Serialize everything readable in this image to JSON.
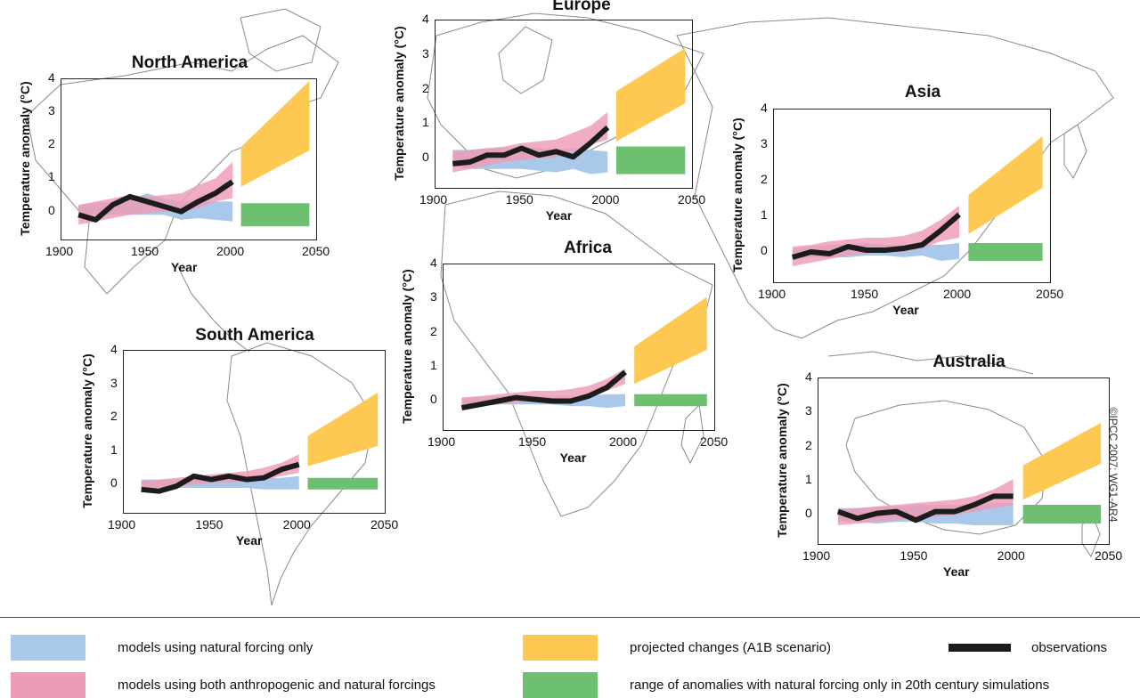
{
  "colors": {
    "natural": "#a9c8ea",
    "both": "#ee9bb6",
    "projected": "#fec953",
    "range20c": "#6cc070",
    "observations": "#1c1c1c",
    "map": "#777777"
  },
  "legend": {
    "natural": "models using natural forcing only",
    "both": "models using both anthropogenic and natural forcings",
    "projected": "projected changes (A1B scenario)",
    "observations": "observations",
    "range20c": "range of anomalies with natural forcing only in 20th century simulations"
  },
  "credit": "©IPCC 2007: WG1-AR4",
  "chart_data": [
    {
      "type": "area",
      "title": "North America",
      "xlabel": "Year",
      "ylabel": "Temperature anomaly (°C)",
      "xlim": [
        1900,
        2050
      ],
      "ylim": [
        -0.9,
        4
      ],
      "xticks": [
        "1900",
        "1950",
        "2000",
        "2050"
      ],
      "yticks": [
        "0",
        "1",
        "2",
        "3",
        "4"
      ],
      "series": [
        {
          "name": "models using natural forcing only",
          "x": [
            1910,
            1920,
            1930,
            1940,
            1950,
            1960,
            1970,
            1980,
            1990,
            2000
          ],
          "low": [
            -0.1,
            -0.1,
            -0.1,
            -0.1,
            -0.1,
            -0.1,
            -0.25,
            -0.2,
            -0.25,
            -0.3
          ],
          "high": [
            0.2,
            0.25,
            0.3,
            0.35,
            0.55,
            0.4,
            0.3,
            0.3,
            0.3,
            0.3
          ]
        },
        {
          "name": "models using both anthropogenic and natural forcings",
          "x": [
            1910,
            1920,
            1930,
            1940,
            1950,
            1960,
            1970,
            1980,
            1990,
            2000
          ],
          "low": [
            -0.4,
            -0.3,
            -0.2,
            -0.1,
            -0.05,
            0.0,
            0.0,
            0.1,
            0.3,
            0.4
          ],
          "high": [
            0.2,
            0.3,
            0.4,
            0.5,
            0.45,
            0.5,
            0.55,
            0.8,
            1.0,
            1.5
          ]
        },
        {
          "name": "observations",
          "x": [
            1910,
            1920,
            1930,
            1940,
            1950,
            1960,
            1970,
            1980,
            1990,
            2000
          ],
          "values": [
            -0.1,
            -0.25,
            0.2,
            0.45,
            0.3,
            0.15,
            0.0,
            0.3,
            0.55,
            0.9
          ]
        },
        {
          "name": "projected changes (A1B scenario)",
          "x": [
            2005,
            2045
          ],
          "low": [
            0.75,
            1.85
          ],
          "high": [
            1.95,
            3.95
          ]
        },
        {
          "name": "range of anomalies with natural forcing only in 20th century simulations",
          "x": [
            2005,
            2045
          ],
          "low": [
            -0.45,
            -0.45
          ],
          "high": [
            0.25,
            0.25
          ]
        }
      ]
    },
    {
      "type": "area",
      "title": "Europe",
      "xlabel": "Year",
      "ylabel": "Temperature anomaly (°C)",
      "xlim": [
        1900,
        2050
      ],
      "ylim": [
        -0.9,
        4
      ],
      "xticks": [
        "1900",
        "1950",
        "2000",
        "2050"
      ],
      "yticks": [
        "0",
        "1",
        "2",
        "3",
        "4"
      ],
      "series": [
        {
          "name": "models using natural forcing only",
          "x": [
            1910,
            1920,
            1930,
            1940,
            1950,
            1960,
            1970,
            1980,
            1990,
            2000
          ],
          "low": [
            -0.2,
            -0.3,
            -0.3,
            -0.3,
            -0.3,
            -0.35,
            -0.4,
            -0.3,
            -0.45,
            -0.4
          ],
          "high": [
            0.25,
            0.25,
            0.3,
            0.3,
            0.35,
            0.3,
            0.25,
            0.3,
            0.25,
            0.2
          ]
        },
        {
          "name": "models using both anthropogenic and natural forcings",
          "x": [
            1910,
            1920,
            1930,
            1940,
            1950,
            1960,
            1970,
            1980,
            1990,
            2000
          ],
          "low": [
            -0.4,
            -0.3,
            -0.2,
            -0.1,
            -0.05,
            0.0,
            0.05,
            0.2,
            0.4,
            0.55
          ],
          "high": [
            0.2,
            0.25,
            0.3,
            0.35,
            0.45,
            0.5,
            0.55,
            0.75,
            0.95,
            1.35
          ]
        },
        {
          "name": "observations",
          "x": [
            1910,
            1920,
            1930,
            1940,
            1950,
            1960,
            1970,
            1980,
            1990,
            2000
          ],
          "values": [
            -0.15,
            -0.1,
            0.1,
            0.1,
            0.3,
            0.1,
            0.2,
            0.05,
            0.45,
            0.9
          ]
        },
        {
          "name": "projected changes (A1B scenario)",
          "x": [
            2005,
            2045
          ],
          "low": [
            0.5,
            1.6
          ],
          "high": [
            1.95,
            3.2
          ]
        },
        {
          "name": "range of anomalies with natural forcing only in 20th century simulations",
          "x": [
            2005,
            2045
          ],
          "low": [
            -0.45,
            -0.45
          ],
          "high": [
            0.35,
            0.35
          ]
        }
      ]
    },
    {
      "type": "area",
      "title": "Asia",
      "xlabel": "Year",
      "ylabel": "Temperature anomaly (°C)",
      "xlim": [
        1900,
        2050
      ],
      "ylim": [
        -0.9,
        4
      ],
      "xticks": [
        "1900",
        "1950",
        "2000",
        "2050"
      ],
      "yticks": [
        "0",
        "1",
        "2",
        "3",
        "4"
      ],
      "series": [
        {
          "name": "models using natural forcing only",
          "x": [
            1910,
            1920,
            1930,
            1940,
            1950,
            1960,
            1970,
            1980,
            1990,
            2000
          ],
          "low": [
            -0.2,
            -0.15,
            -0.15,
            -0.15,
            -0.1,
            -0.1,
            -0.15,
            -0.1,
            -0.25,
            -0.2
          ],
          "high": [
            0.1,
            0.15,
            0.2,
            0.2,
            0.25,
            0.2,
            0.2,
            0.2,
            0.2,
            0.25
          ]
        },
        {
          "name": "models using both anthropogenic and natural forcings",
          "x": [
            1910,
            1920,
            1930,
            1940,
            1950,
            1960,
            1970,
            1980,
            1990,
            2000
          ],
          "low": [
            -0.4,
            -0.3,
            -0.2,
            -0.1,
            -0.05,
            0.0,
            0.0,
            0.1,
            0.3,
            0.4
          ],
          "high": [
            0.15,
            0.2,
            0.3,
            0.35,
            0.4,
            0.4,
            0.45,
            0.6,
            0.9,
            1.3
          ]
        },
        {
          "name": "observations",
          "x": [
            1910,
            1920,
            1930,
            1940,
            1950,
            1960,
            1970,
            1980,
            1990,
            2000
          ],
          "values": [
            -0.15,
            0.0,
            -0.05,
            0.15,
            0.05,
            0.05,
            0.1,
            0.2,
            0.6,
            1.05
          ]
        },
        {
          "name": "projected changes (A1B scenario)",
          "x": [
            2005,
            2045
          ],
          "low": [
            0.5,
            1.8
          ],
          "high": [
            1.6,
            3.25
          ]
        },
        {
          "name": "range of anomalies with natural forcing only in 20th century simulations",
          "x": [
            2005,
            2045
          ],
          "low": [
            -0.25,
            -0.25
          ],
          "high": [
            0.25,
            0.25
          ]
        }
      ]
    },
    {
      "type": "area",
      "title": "Africa",
      "xlabel": "Year",
      "ylabel": "Temperature anomaly (°C)",
      "xlim": [
        1900,
        2050
      ],
      "ylim": [
        -0.9,
        4
      ],
      "xticks": [
        "1900",
        "1950",
        "2000",
        "2050"
      ],
      "yticks": [
        "0",
        "1",
        "2",
        "3",
        "4"
      ],
      "series": [
        {
          "name": "models using natural forcing only",
          "x": [
            1910,
            1920,
            1930,
            1940,
            1950,
            1960,
            1970,
            1980,
            1990,
            2000
          ],
          "low": [
            -0.1,
            -0.1,
            -0.1,
            -0.1,
            -0.1,
            -0.1,
            -0.15,
            -0.15,
            -0.2,
            -0.15
          ],
          "high": [
            0.1,
            0.1,
            0.15,
            0.15,
            0.15,
            0.15,
            0.15,
            0.15,
            0.2,
            0.2
          ]
        },
        {
          "name": "models using both anthropogenic and natural forcings",
          "x": [
            1910,
            1920,
            1930,
            1940,
            1950,
            1960,
            1970,
            1980,
            1990,
            2000
          ],
          "low": [
            -0.2,
            -0.15,
            -0.1,
            -0.05,
            0.0,
            0.0,
            0.05,
            0.15,
            0.3,
            0.5
          ],
          "high": [
            0.1,
            0.15,
            0.2,
            0.25,
            0.3,
            0.3,
            0.35,
            0.45,
            0.65,
            0.95
          ]
        },
        {
          "name": "observations",
          "x": [
            1910,
            1920,
            1930,
            1940,
            1950,
            1960,
            1970,
            1980,
            1990,
            2000
          ],
          "values": [
            -0.2,
            -0.1,
            0.0,
            0.1,
            0.05,
            0.0,
            0.0,
            0.15,
            0.4,
            0.85
          ]
        },
        {
          "name": "projected changes (A1B scenario)",
          "x": [
            2005,
            2045
          ],
          "low": [
            0.5,
            1.5
          ],
          "high": [
            1.6,
            3.05
          ]
        },
        {
          "name": "range of anomalies with natural forcing only in 20th century simulations",
          "x": [
            2005,
            2045
          ],
          "low": [
            -0.15,
            -0.15
          ],
          "high": [
            0.2,
            0.2
          ]
        }
      ]
    },
    {
      "type": "area",
      "title": "South America",
      "xlabel": "Year",
      "ylabel": "Temperature anomaly (°C)",
      "xlim": [
        1900,
        2050
      ],
      "ylim": [
        -0.9,
        4
      ],
      "xticks": [
        "1900",
        "1950",
        "2000",
        "2050"
      ],
      "yticks": [
        "0",
        "1",
        "2",
        "3",
        "4"
      ],
      "series": [
        {
          "name": "models using natural forcing only",
          "x": [
            1910,
            1920,
            1930,
            1940,
            1950,
            1960,
            1970,
            1980,
            1990,
            2000
          ],
          "low": [
            -0.1,
            -0.1,
            -0.1,
            -0.1,
            -0.1,
            -0.1,
            -0.1,
            -0.15,
            -0.15,
            -0.15
          ],
          "high": [
            0.15,
            0.15,
            0.15,
            0.2,
            0.2,
            0.2,
            0.2,
            0.2,
            0.2,
            0.25
          ]
        },
        {
          "name": "models using both anthropogenic and natural forcings",
          "x": [
            1910,
            1920,
            1930,
            1940,
            1950,
            1960,
            1970,
            1980,
            1990,
            2000
          ],
          "low": [
            -0.15,
            -0.1,
            -0.05,
            0.0,
            0.05,
            0.05,
            0.1,
            0.15,
            0.25,
            0.35
          ],
          "high": [
            0.1,
            0.15,
            0.2,
            0.25,
            0.3,
            0.35,
            0.4,
            0.5,
            0.65,
            0.9
          ]
        },
        {
          "name": "observations",
          "x": [
            1910,
            1920,
            1930,
            1940,
            1950,
            1960,
            1970,
            1980,
            1990,
            2000
          ],
          "values": [
            -0.15,
            -0.2,
            -0.05,
            0.25,
            0.15,
            0.25,
            0.15,
            0.2,
            0.45,
            0.6
          ]
        },
        {
          "name": "projected changes (A1B scenario)",
          "x": [
            2005,
            2045
          ],
          "low": [
            0.55,
            1.15
          ],
          "high": [
            1.45,
            2.75
          ]
        },
        {
          "name": "range of anomalies with natural forcing only in 20th century simulations",
          "x": [
            2005,
            2045
          ],
          "low": [
            -0.15,
            -0.15
          ],
          "high": [
            0.2,
            0.2
          ]
        }
      ]
    },
    {
      "type": "area",
      "title": "Australia",
      "xlabel": "Year",
      "ylabel": "Temperature anomaly (°C)",
      "xlim": [
        1900,
        2050
      ],
      "ylim": [
        -0.9,
        4
      ],
      "xticks": [
        "1900",
        "1950",
        "2000",
        "2050"
      ],
      "yticks": [
        "0",
        "1",
        "2",
        "3",
        "4"
      ],
      "series": [
        {
          "name": "models using natural forcing only",
          "x": [
            1910,
            1920,
            1930,
            1940,
            1950,
            1960,
            1970,
            1980,
            1990,
            2000
          ],
          "low": [
            -0.2,
            -0.2,
            -0.25,
            -0.2,
            -0.2,
            -0.25,
            -0.25,
            -0.3,
            -0.3,
            -0.3
          ],
          "high": [
            0.2,
            0.2,
            0.25,
            0.25,
            0.3,
            0.3,
            0.3,
            0.3,
            0.35,
            0.35
          ]
        },
        {
          "name": "models using both anthropogenic and natural forcings",
          "x": [
            1910,
            1920,
            1930,
            1940,
            1950,
            1960,
            1970,
            1980,
            1990,
            2000
          ],
          "low": [
            -0.3,
            -0.25,
            -0.2,
            -0.15,
            -0.1,
            -0.05,
            0.0,
            0.1,
            0.2,
            0.3
          ],
          "high": [
            0.15,
            0.2,
            0.25,
            0.3,
            0.35,
            0.4,
            0.45,
            0.55,
            0.75,
            1.05
          ]
        },
        {
          "name": "observations",
          "x": [
            1910,
            1920,
            1930,
            1940,
            1950,
            1960,
            1970,
            1980,
            1990,
            2000
          ],
          "values": [
            0.1,
            -0.1,
            0.05,
            0.1,
            -0.15,
            0.1,
            0.1,
            0.3,
            0.55,
            0.55
          ]
        },
        {
          "name": "projected changes (A1B scenario)",
          "x": [
            2005,
            2045
          ],
          "low": [
            0.45,
            1.5
          ],
          "high": [
            1.45,
            2.7
          ]
        },
        {
          "name": "range of anomalies with natural forcing only in 20th century simulations",
          "x": [
            2005,
            2045
          ],
          "low": [
            -0.25,
            -0.25
          ],
          "high": [
            0.3,
            0.3
          ]
        }
      ]
    }
  ]
}
